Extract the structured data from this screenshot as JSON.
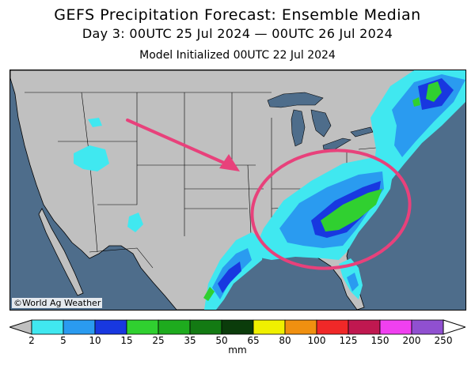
{
  "header": {
    "title": "GEFS Precipitation Forecast: Ensemble Median",
    "subtitle": "Day 3: 00UTC 25 Jul 2024 — 00UTC 26 Jul 2024",
    "init": "Model Initialized 00UTC 22 Jul 2024"
  },
  "map": {
    "credit": "©World Ag Weather",
    "land_color": "#c0c0c0",
    "water_color": "#4e6d8b",
    "annotation_color": "#e8417b"
  },
  "colorbar": {
    "units": "mm",
    "levels": [
      "2",
      "5",
      "10",
      "15",
      "25",
      "35",
      "50",
      "65",
      "80",
      "100",
      "125",
      "150",
      "200",
      "250"
    ],
    "colors": [
      "#c0c0c0",
      "#40e8f0",
      "#2a9bf0",
      "#1838e0",
      "#30d030",
      "#1eab1e",
      "#137a13",
      "#0b3c0b",
      "#f0f000",
      "#f09010",
      "#f02828",
      "#c01850",
      "#f040f0",
      "#9050d0",
      "#ffffff"
    ]
  }
}
